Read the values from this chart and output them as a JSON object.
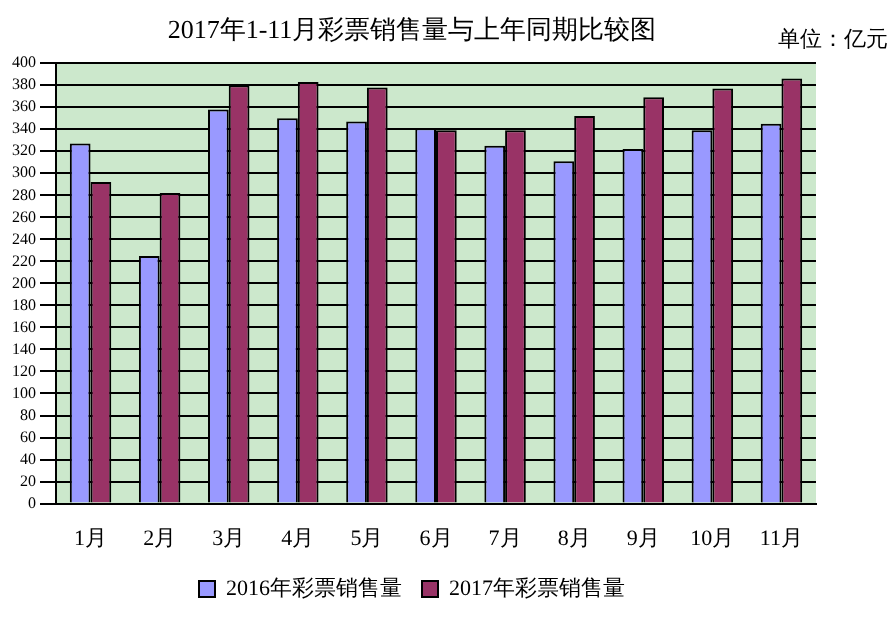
{
  "chart_data": {
    "type": "bar",
    "title": "2017年1-11月彩票销售量与上年同期比较图",
    "annotations": [
      "单位：亿元"
    ],
    "categories": [
      "1月",
      "2月",
      "3月",
      "4月",
      "5月",
      "6月",
      "7月",
      "8月",
      "9月",
      "10月",
      "11月"
    ],
    "series": [
      {
        "name": "2016年彩票销售量",
        "color": "#9999ff",
        "values": [
          327,
          225,
          358,
          350,
          347,
          341,
          325,
          311,
          322,
          339,
          345
        ]
      },
      {
        "name": "2017年彩票销售量",
        "color": "#993366",
        "values": [
          292,
          282,
          380,
          383,
          378,
          339,
          339,
          352,
          369,
          377,
          386
        ]
      }
    ],
    "ylim": [
      0,
      400
    ],
    "yticks": [
      0,
      20,
      40,
      60,
      80,
      100,
      120,
      140,
      160,
      180,
      200,
      220,
      240,
      260,
      280,
      300,
      320,
      340,
      360,
      380,
      400
    ],
    "grid": "y",
    "legend": "bottom"
  }
}
